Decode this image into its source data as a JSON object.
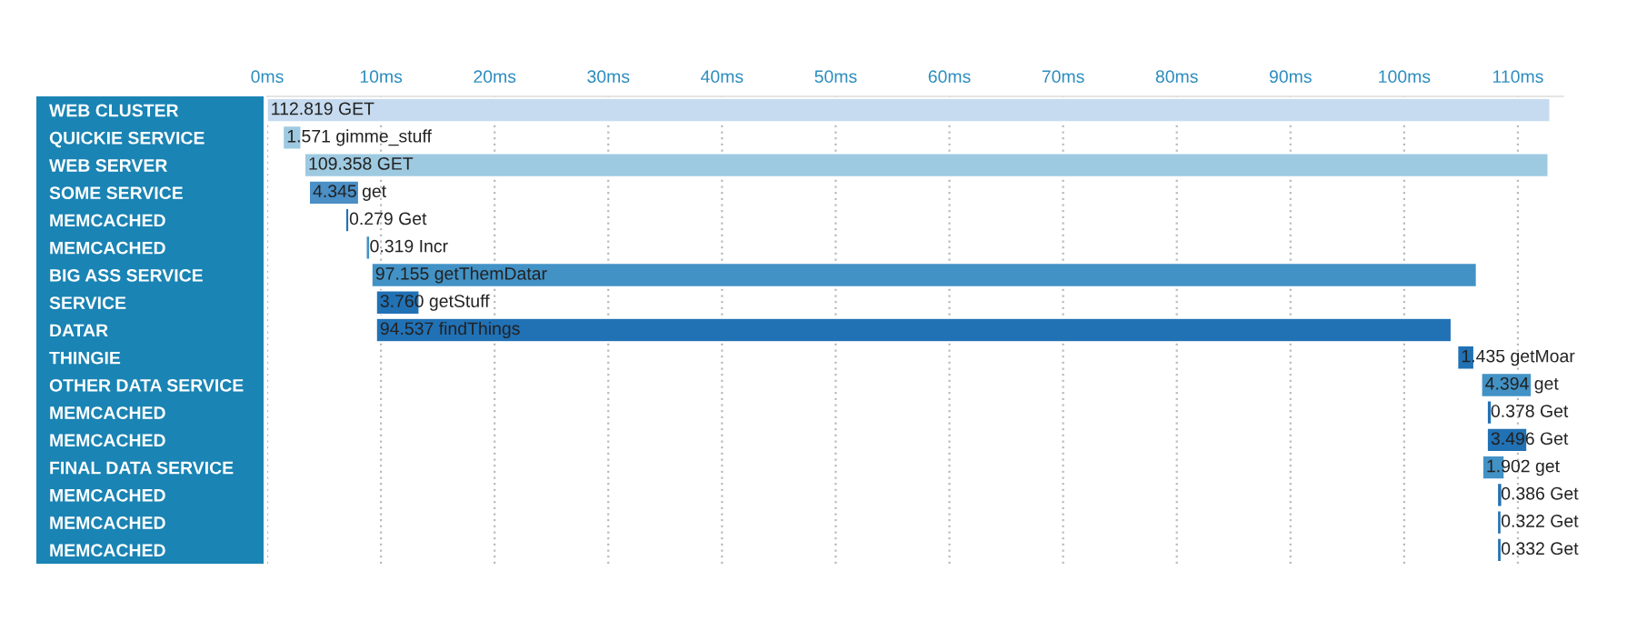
{
  "chart_data": {
    "type": "bar",
    "orientation": "horizontal",
    "categories": [
      "WEB CLUSTER",
      "QUICKIE SERVICE",
      "WEB SERVER",
      "SOME SERVICE",
      "MEMCACHED",
      "MEMCACHED",
      "BIG ASS SERVICE",
      "SERVICE",
      "DATAR",
      "THINGIE",
      "OTHER DATA SERVICE",
      "MEMCACHED",
      "MEMCACHED",
      "FINAL DATA SERVICE",
      "MEMCACHED",
      "MEMCACHED",
      "MEMCACHED"
    ],
    "base": [
      0,
      1.4,
      3.3,
      3.7,
      6.9,
      8.7,
      9.2,
      9.6,
      9.6,
      104.7,
      106.8,
      107.3,
      107.3,
      106.9,
      108.2,
      108.2,
      108.2
    ],
    "values": [
      112.819,
      1.571,
      109.358,
      4.345,
      0.279,
      0.319,
      97.155,
      3.76,
      94.537,
      1.435,
      4.394,
      0.378,
      3.496,
      1.902,
      0.386,
      0.322,
      0.332
    ],
    "value_labels": [
      "112.819 GET",
      "1.571 gimme_stuff",
      "109.358 GET",
      "4.345 get",
      "0.279 Get",
      "0.319 Incr",
      "97.155 getThemDatar",
      "3.760 getStuff",
      "94.537 findThings",
      "1.435 getMoar",
      "4.394 get",
      "0.378 Get",
      "3.496 Get",
      "1.902 get",
      "0.386 Get",
      "0.322 Get",
      "0.332 Get"
    ],
    "colors": [
      "#c6dbef",
      "#9ecae1",
      "#9ecae1",
      "#4a8fc6",
      "#2171b5",
      "#4292c6",
      "#4292c6",
      "#2171b5",
      "#2171b5",
      "#2171b5",
      "#4292c6",
      "#2171b5",
      "#2171b5",
      "#4292c6",
      "#2171b5",
      "#2171b5",
      "#2171b5"
    ],
    "xlim": [
      0,
      114
    ],
    "xticks": [
      {
        "value": 0,
        "label": "0ms"
      },
      {
        "value": 10,
        "label": "10ms"
      },
      {
        "value": 20,
        "label": "20ms"
      },
      {
        "value": 30,
        "label": "30ms"
      },
      {
        "value": 40,
        "label": "40ms"
      },
      {
        "value": 50,
        "label": "50ms"
      },
      {
        "value": 60,
        "label": "60ms"
      },
      {
        "value": 70,
        "label": "70ms"
      },
      {
        "value": 80,
        "label": "80ms"
      },
      {
        "value": 90,
        "label": "90ms"
      },
      {
        "value": 100,
        "label": "100ms"
      },
      {
        "value": 110,
        "label": "110ms"
      }
    ],
    "grid": "x"
  }
}
